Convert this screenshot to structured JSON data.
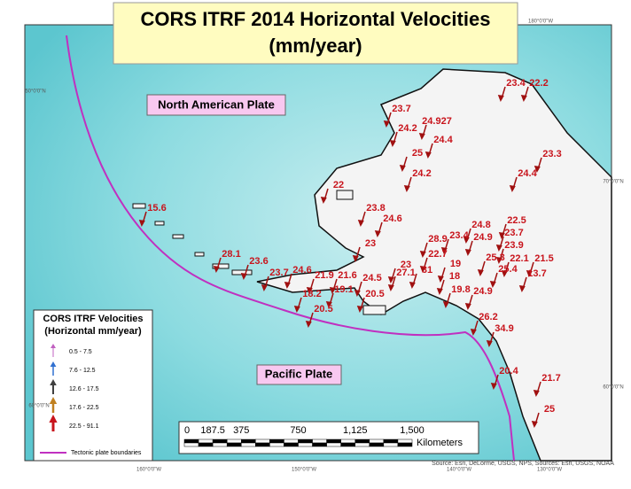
{
  "title": "CORS ITRF 2014 Horizontal Velocities",
  "subtitle": "(mm/year)",
  "plates": [
    "North American Plate",
    "Pacific Plate"
  ],
  "graticule": [
    "180°0'0\"W",
    "50°0'0\"N",
    "60°0'0\"N",
    "70°0'0\"N",
    "60°0'0\"N",
    "160°0'0\"W",
    "150°0'0\"W",
    "140°0'0\"W",
    "130°0'0\"W"
  ],
  "velocity_labels": [
    "23.4",
    "22.2",
    "23.7",
    "24.927",
    "24.2",
    "24.4",
    "25",
    "23.3",
    "24.2",
    "24.4",
    "22",
    "15.6",
    "23.8",
    "24.6",
    "24.8",
    "22.5",
    "23.7",
    "28.9",
    "23.4",
    "24.9",
    "23.9",
    "23",
    "22.7",
    "25.3",
    "22.1",
    "21.5",
    "28.1",
    "23.6",
    "23",
    "19",
    "25.4",
    "13.7",
    "24.6",
    "23.7",
    "21.9",
    "21.6",
    "27.1",
    "31",
    "24.5",
    "18",
    "19.1",
    "18.2",
    "20.5",
    "20.5",
    "19.8",
    "24.9",
    "26.2",
    "34.9",
    "20.4",
    "21.7",
    "25"
  ],
  "legend": {
    "title": "CORS ITRF Velocities",
    "subtitle": "(Horizontal mm/year)",
    "entries": [
      "0.5 - 7.5",
      "7.6 - 12.5",
      "12.6 - 17.5",
      "17.6 - 22.5",
      "22.5 - 91.1"
    ],
    "colors": [
      "#c060c0",
      "#3070d0",
      "#404040",
      "#c08020",
      "#c8141c"
    ],
    "boundary": "Tectonic plate boundaries"
  },
  "scale": {
    "labels": [
      "0",
      "187.5",
      "375",
      "750",
      "1,125",
      "1,500"
    ],
    "unit": "Kilometers"
  },
  "source": "Source: Esri, DeLorme, USGS, NPS, Sources: Esri, USGS, NOAA"
}
